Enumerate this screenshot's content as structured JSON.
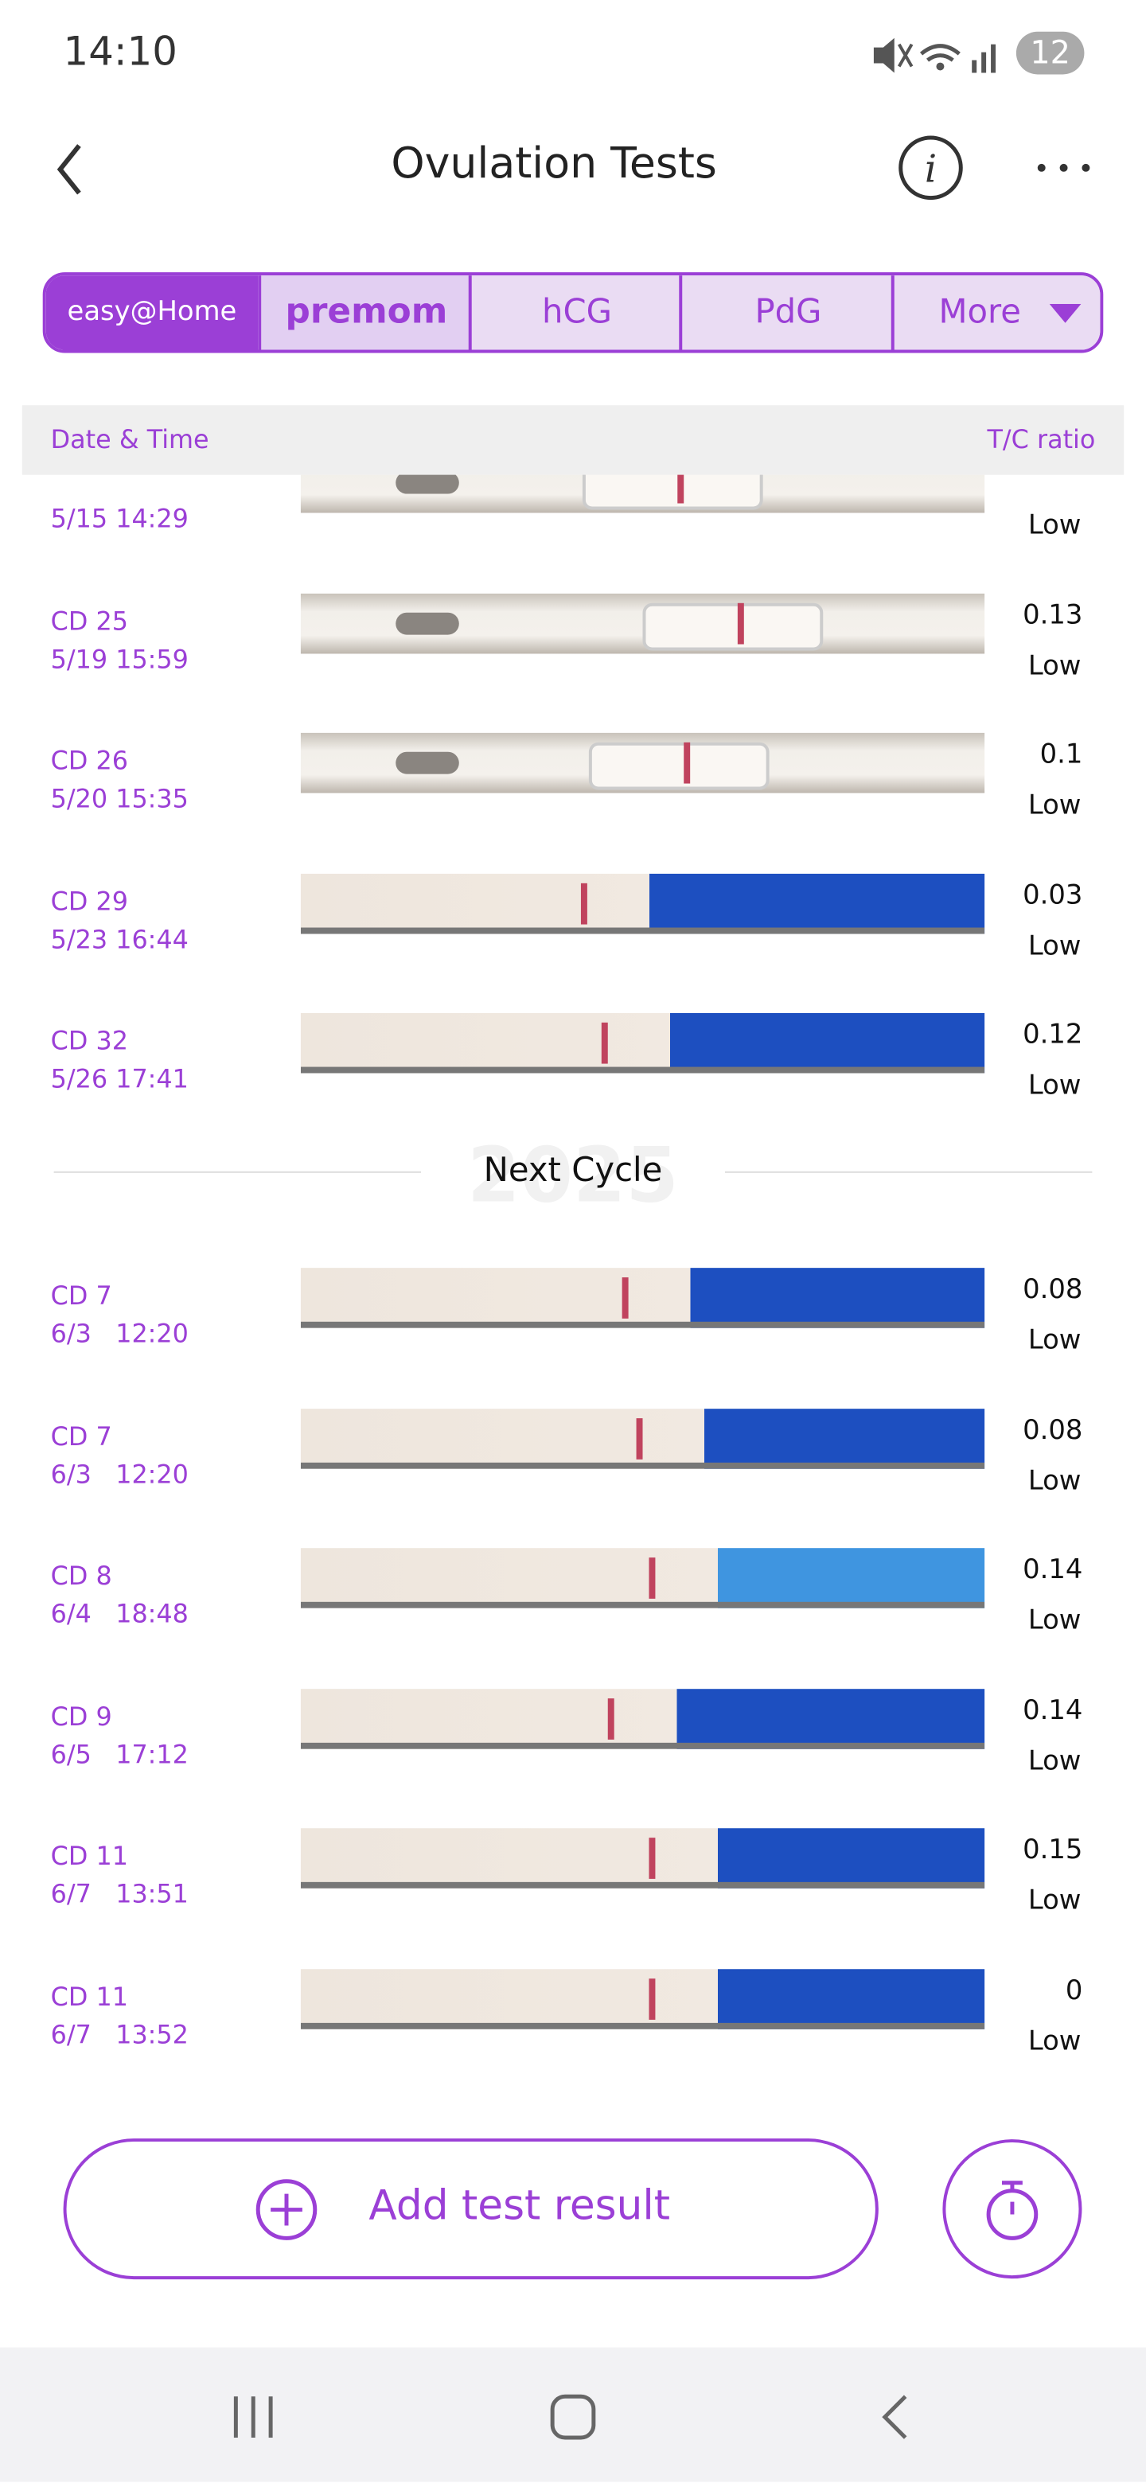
{
  "status_bar": {
    "time": "14:10",
    "battery": "12"
  },
  "header": {
    "title": "Ovulation Tests"
  },
  "tabs": [
    "easy@Home",
    "premom",
    "hCG",
    "PdG",
    "More"
  ],
  "table": {
    "columns": [
      "Date & Time",
      "T/C ratio"
    ],
    "sections": [
      {
        "rows": [
          {
            "date": "5/15",
            "time": "14:29",
            "result": "Low"
          },
          {
            "cd": "CD 25",
            "date": "5/19",
            "time": "15:59",
            "ratio": "0.13",
            "result": "Low"
          },
          {
            "cd": "CD 26",
            "date": "5/20",
            "time": "15:35",
            "ratio": "0.1",
            "result": "Low"
          },
          {
            "cd": "CD 29",
            "date": "5/23",
            "time": "16:44",
            "ratio": "0.03",
            "result": "Low"
          },
          {
            "cd": "CD 32",
            "date": "5/26",
            "time": "17:41",
            "ratio": "0.12",
            "result": "Low"
          }
        ]
      },
      {
        "label": "Next Cycle",
        "watermark": "2025",
        "rows": [
          {
            "cd": "CD 7",
            "date": "6/3",
            "time": "12:20",
            "ratio": "0.08",
            "result": "Low"
          },
          {
            "cd": "CD 7",
            "date": "6/3",
            "time": "12:20",
            "ratio": "0.08",
            "result": "Low"
          },
          {
            "cd": "CD 8",
            "date": "6/4",
            "time": "18:48",
            "ratio": "0.14",
            "result": "Low"
          },
          {
            "cd": "CD 9",
            "date": "6/5",
            "time": "17:12",
            "ratio": "0.14",
            "result": "Low"
          },
          {
            "cd": "CD 11",
            "date": "6/7",
            "time": "13:51",
            "ratio": "0.15",
            "result": "Low"
          },
          {
            "cd": "CD 11",
            "date": "6/7",
            "time": "13:52",
            "ratio": "0",
            "result": "Low"
          }
        ]
      }
    ]
  },
  "add_button": "Add test result"
}
